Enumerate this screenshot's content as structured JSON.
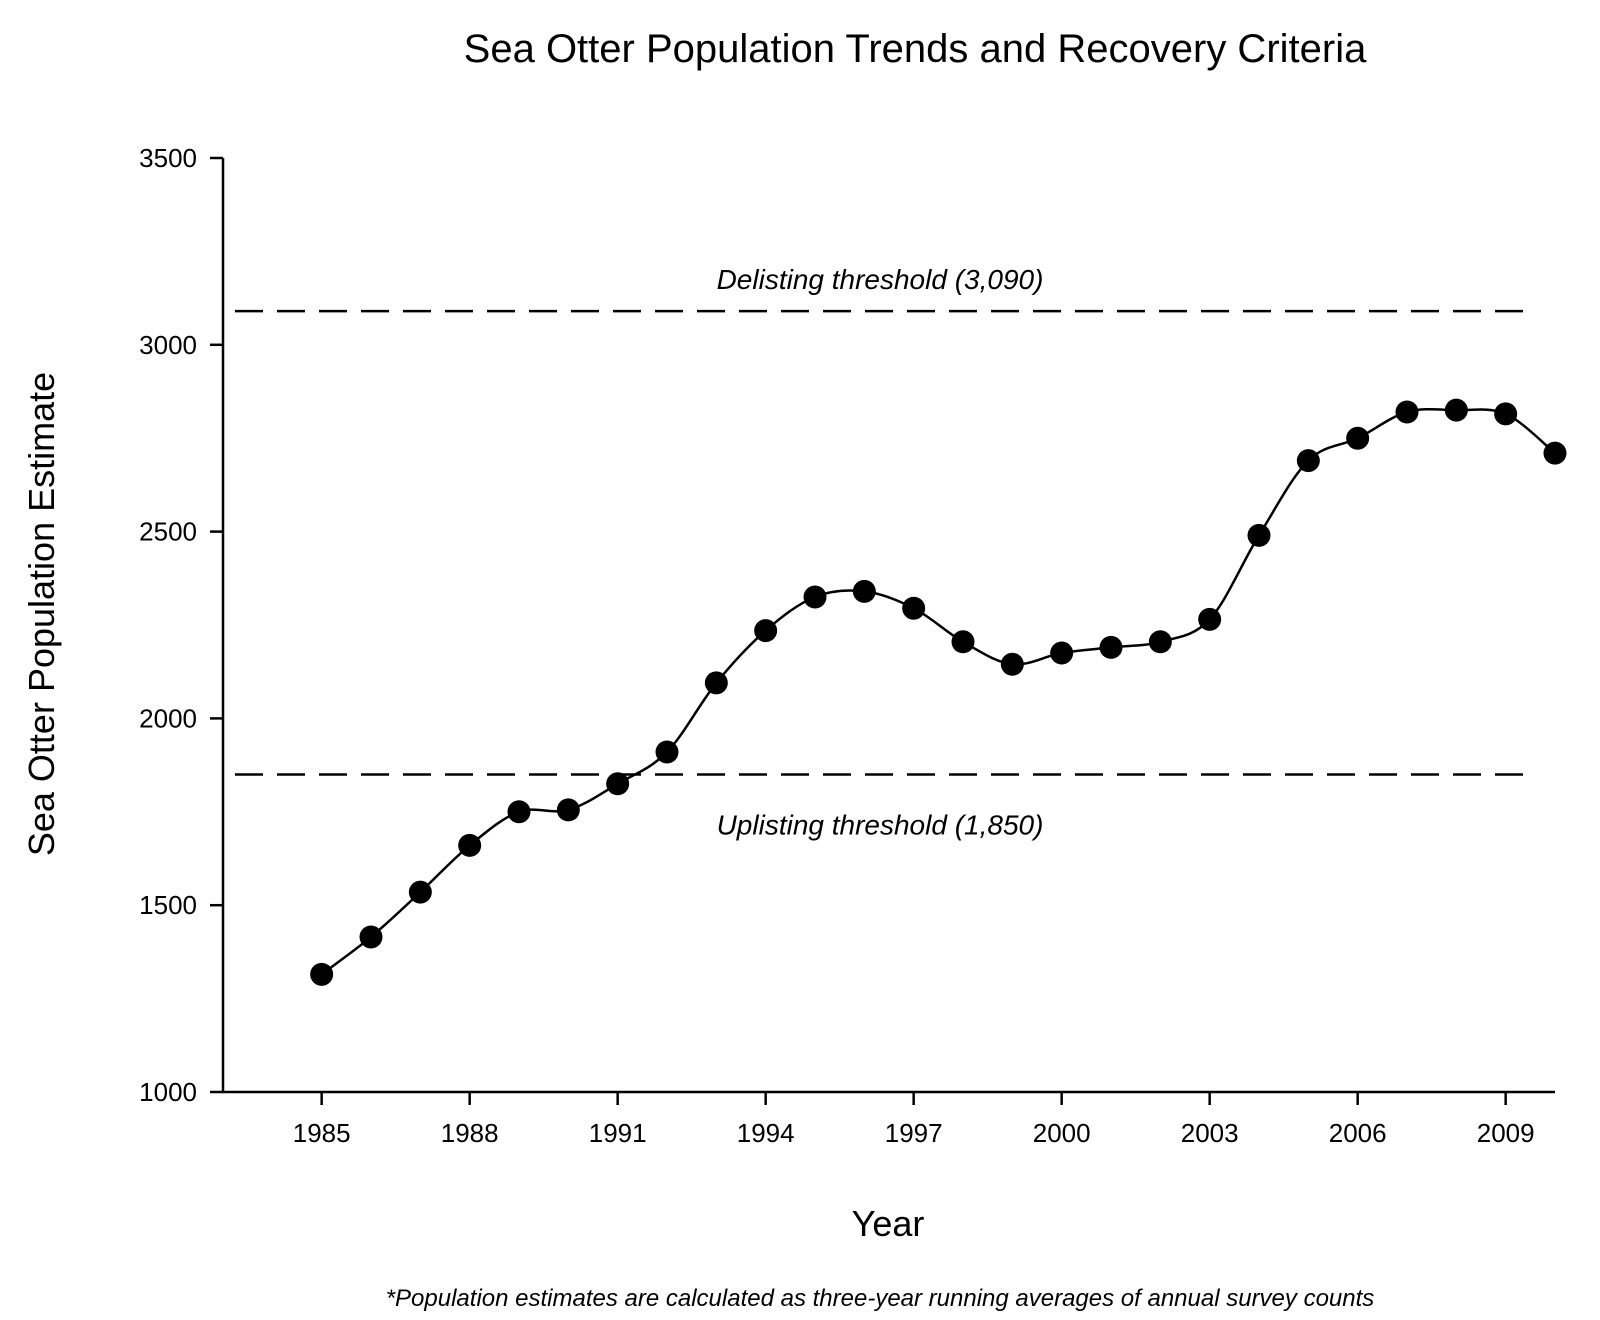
{
  "chart_data": {
    "type": "line",
    "title": "Sea Otter Population Trends and Recovery Criteria",
    "xlabel": "Year",
    "ylabel": "Sea Otter Population Estimate",
    "footnote": "*Population estimates are calculated as three-year running averages of annual survey counts",
    "xlim": [
      1983,
      2010
    ],
    "ylim": [
      1000,
      3500
    ],
    "x_ticks": [
      1985,
      1988,
      1991,
      1994,
      1997,
      2000,
      2003,
      2006,
      2009
    ],
    "x_tick_labels": [
      "1985",
      "1988",
      "1991",
      "1994",
      "1997",
      "2000",
      "2003",
      "2006",
      "2009"
    ],
    "y_ticks": [
      1000,
      1500,
      2000,
      2500,
      3000,
      3500
    ],
    "y_tick_labels": [
      "1000",
      "1500",
      "2000",
      "2500",
      "3000",
      "3500"
    ],
    "grid": false,
    "series": [
      {
        "name": "Population estimate",
        "color": "#000000",
        "x": [
          1985,
          1986,
          1987,
          1988,
          1989,
          1990,
          1991,
          1992,
          1993,
          1994,
          1995,
          1996,
          1997,
          1998,
          1999,
          2000,
          2001,
          2002,
          2003,
          2004,
          2005,
          2006,
          2007,
          2008,
          2009,
          2010
        ],
        "values": [
          1315,
          1415,
          1535,
          1660,
          1750,
          1755,
          1825,
          1910,
          2095,
          2235,
          2325,
          2340,
          2295,
          2205,
          2145,
          2175,
          2190,
          2205,
          2265,
          2490,
          2690,
          2750,
          2820,
          2825,
          2815,
          2710
        ]
      }
    ],
    "reference_lines": [
      {
        "value": 3090,
        "label": "Delisting threshold (3,090)",
        "label_position": "above",
        "style": "dashed"
      },
      {
        "value": 1850,
        "label": "Uplisting threshold (1,850)",
        "label_position": "below",
        "style": "dashed"
      }
    ]
  }
}
